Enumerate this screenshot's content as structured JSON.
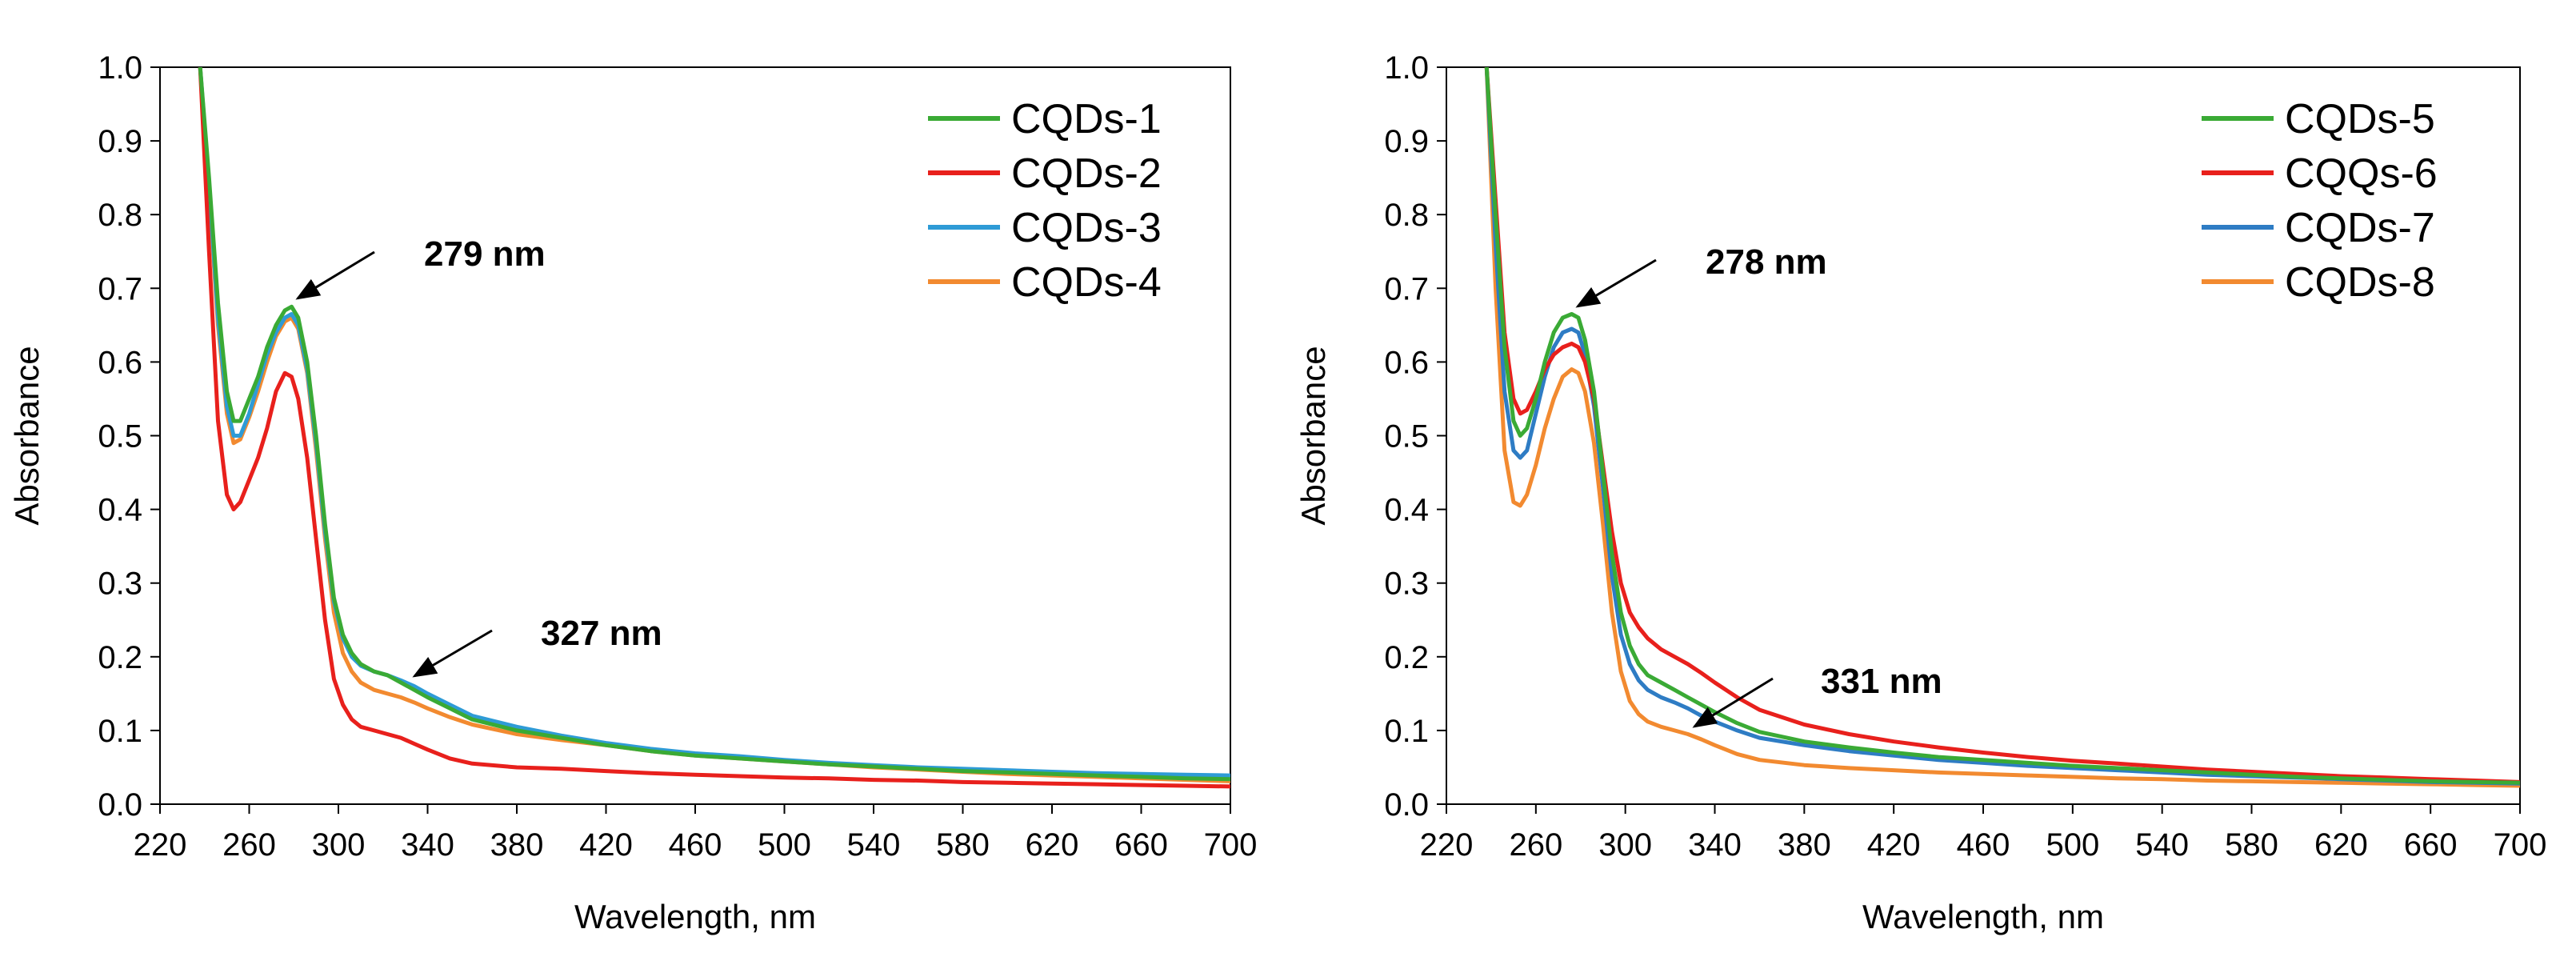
{
  "chart_data": [
    {
      "type": "line",
      "title": "",
      "xlabel": "Wavelength, nm",
      "ylabel": "Absorbance",
      "xlim": [
        220,
        700
      ],
      "ylim": [
        0,
        1.0
      ],
      "xticks": [
        220,
        260,
        300,
        340,
        380,
        420,
        460,
        500,
        540,
        580,
        620,
        660,
        700
      ],
      "yticks": [
        0.0,
        0.1,
        0.2,
        0.3,
        0.4,
        0.5,
        0.6,
        0.7,
        0.8,
        0.9,
        1.0
      ],
      "ytick_labels": [
        "0.0",
        "0.1",
        "0.2",
        "0.3",
        "0.4",
        "0.5",
        "0.6",
        "0.7",
        "0.8",
        "0.9",
        "1.0"
      ],
      "legend_position": "top-right",
      "grid": false,
      "series": [
        {
          "name": "CQDs-1",
          "color": "#3aaa35",
          "x": [
            238,
            242,
            246,
            250,
            253,
            256,
            260,
            264,
            268,
            272,
            276,
            279,
            282,
            286,
            290,
            294,
            298,
            302,
            306,
            310,
            316,
            322,
            328,
            334,
            340,
            350,
            360,
            380,
            400,
            420,
            440,
            460,
            480,
            500,
            520,
            540,
            560,
            580,
            600,
            620,
            640,
            660,
            680,
            700
          ],
          "y": [
            1.0,
            0.85,
            0.68,
            0.56,
            0.52,
            0.52,
            0.55,
            0.58,
            0.62,
            0.65,
            0.67,
            0.675,
            0.66,
            0.6,
            0.5,
            0.38,
            0.28,
            0.23,
            0.205,
            0.19,
            0.18,
            0.175,
            0.165,
            0.155,
            0.145,
            0.13,
            0.115,
            0.1,
            0.09,
            0.08,
            0.072,
            0.066,
            0.062,
            0.058,
            0.054,
            0.051,
            0.048,
            0.045,
            0.043,
            0.041,
            0.039,
            0.037,
            0.035,
            0.034
          ]
        },
        {
          "name": "CQDs-2",
          "color": "#e8201c",
          "x": [
            238,
            242,
            246,
            250,
            253,
            256,
            260,
            264,
            268,
            272,
            276,
            279,
            282,
            286,
            290,
            294,
            298,
            302,
            306,
            310,
            316,
            322,
            328,
            334,
            340,
            350,
            360,
            380,
            400,
            420,
            440,
            460,
            480,
            500,
            520,
            540,
            560,
            580,
            600,
            620,
            640,
            660,
            680,
            700
          ],
          "y": [
            1.0,
            0.75,
            0.52,
            0.42,
            0.4,
            0.41,
            0.44,
            0.47,
            0.51,
            0.56,
            0.585,
            0.58,
            0.55,
            0.47,
            0.36,
            0.25,
            0.17,
            0.135,
            0.115,
            0.105,
            0.1,
            0.095,
            0.09,
            0.082,
            0.074,
            0.062,
            0.055,
            0.05,
            0.048,
            0.045,
            0.042,
            0.04,
            0.038,
            0.036,
            0.035,
            0.033,
            0.032,
            0.03,
            0.029,
            0.028,
            0.027,
            0.026,
            0.025,
            0.024
          ]
        },
        {
          "name": "CQDs-3",
          "color": "#2e9bd6",
          "x": [
            238,
            242,
            246,
            250,
            253,
            256,
            260,
            264,
            268,
            272,
            276,
            279,
            282,
            286,
            290,
            294,
            298,
            302,
            306,
            310,
            316,
            322,
            328,
            334,
            340,
            350,
            360,
            380,
            400,
            420,
            440,
            460,
            480,
            500,
            520,
            540,
            560,
            580,
            600,
            620,
            640,
            660,
            680,
            700
          ],
          "y": [
            1.0,
            0.84,
            0.66,
            0.54,
            0.5,
            0.5,
            0.53,
            0.57,
            0.61,
            0.64,
            0.66,
            0.665,
            0.65,
            0.59,
            0.49,
            0.37,
            0.275,
            0.225,
            0.2,
            0.188,
            0.18,
            0.175,
            0.168,
            0.16,
            0.15,
            0.135,
            0.12,
            0.105,
            0.093,
            0.083,
            0.075,
            0.069,
            0.065,
            0.06,
            0.056,
            0.053,
            0.05,
            0.048,
            0.046,
            0.044,
            0.042,
            0.041,
            0.04,
            0.039
          ]
        },
        {
          "name": "CQDs-4",
          "color": "#f28a30",
          "x": [
            238,
            242,
            246,
            250,
            253,
            256,
            260,
            264,
            268,
            272,
            276,
            279,
            282,
            286,
            290,
            294,
            298,
            302,
            306,
            310,
            316,
            322,
            328,
            334,
            340,
            350,
            360,
            380,
            400,
            420,
            440,
            460,
            480,
            500,
            520,
            540,
            560,
            580,
            600,
            620,
            640,
            660,
            680,
            700
          ],
          "y": [
            1.0,
            0.83,
            0.65,
            0.53,
            0.49,
            0.495,
            0.525,
            0.56,
            0.6,
            0.635,
            0.655,
            0.66,
            0.645,
            0.585,
            0.48,
            0.36,
            0.26,
            0.205,
            0.18,
            0.165,
            0.155,
            0.15,
            0.145,
            0.138,
            0.13,
            0.118,
            0.108,
            0.095,
            0.087,
            0.08,
            0.072,
            0.066,
            0.062,
            0.058,
            0.054,
            0.05,
            0.047,
            0.044,
            0.041,
            0.039,
            0.037,
            0.035,
            0.033,
            0.031
          ]
        }
      ],
      "annotations": [
        {
          "text": "279 nm",
          "x": 279,
          "y": 0.69
        },
        {
          "text": "327 nm",
          "x": 333,
          "y": 0.175
        }
      ]
    },
    {
      "type": "line",
      "title": "",
      "xlabel": "Wavelength, nm",
      "ylabel": "Absorbance",
      "xlim": [
        220,
        700
      ],
      "ylim": [
        0,
        1.0
      ],
      "xticks": [
        220,
        260,
        300,
        340,
        380,
        420,
        460,
        500,
        540,
        580,
        620,
        660,
        700
      ],
      "yticks": [
        0.0,
        0.1,
        0.2,
        0.3,
        0.4,
        0.5,
        0.6,
        0.7,
        0.8,
        0.9,
        1.0
      ],
      "ytick_labels": [
        "0.0",
        "0.1",
        "0.2",
        "0.3",
        "0.4",
        "0.5",
        "0.6",
        "0.7",
        "0.8",
        "0.9",
        "1.0"
      ],
      "legend_position": "top-right",
      "grid": false,
      "series": [
        {
          "name": "CQDs-5",
          "color": "#3aaa35",
          "x": [
            238,
            242,
            246,
            250,
            253,
            256,
            260,
            264,
            268,
            272,
            276,
            279,
            282,
            286,
            290,
            294,
            298,
            302,
            306,
            310,
            316,
            322,
            328,
            334,
            340,
            350,
            360,
            380,
            400,
            420,
            440,
            460,
            480,
            500,
            520,
            540,
            560,
            580,
            600,
            620,
            640,
            660,
            680,
            700
          ],
          "y": [
            1.0,
            0.8,
            0.62,
            0.52,
            0.5,
            0.51,
            0.55,
            0.6,
            0.64,
            0.66,
            0.665,
            0.66,
            0.63,
            0.56,
            0.45,
            0.34,
            0.26,
            0.215,
            0.19,
            0.175,
            0.165,
            0.155,
            0.145,
            0.135,
            0.125,
            0.11,
            0.098,
            0.085,
            0.077,
            0.07,
            0.064,
            0.06,
            0.056,
            0.052,
            0.049,
            0.046,
            0.043,
            0.04,
            0.037,
            0.035,
            0.033,
            0.031,
            0.03,
            0.029
          ]
        },
        {
          "name": "CQQs-6",
          "color": "#e8201c",
          "x": [
            238,
            242,
            246,
            250,
            253,
            256,
            260,
            264,
            268,
            272,
            276,
            279,
            282,
            286,
            290,
            294,
            298,
            302,
            306,
            310,
            316,
            322,
            328,
            334,
            340,
            350,
            360,
            380,
            400,
            420,
            440,
            460,
            480,
            500,
            520,
            540,
            560,
            580,
            600,
            620,
            640,
            660,
            680,
            700
          ],
          "y": [
            1.0,
            0.82,
            0.64,
            0.55,
            0.53,
            0.535,
            0.56,
            0.59,
            0.61,
            0.62,
            0.625,
            0.62,
            0.6,
            0.55,
            0.46,
            0.37,
            0.3,
            0.26,
            0.24,
            0.225,
            0.21,
            0.2,
            0.19,
            0.178,
            0.165,
            0.145,
            0.128,
            0.108,
            0.095,
            0.085,
            0.077,
            0.07,
            0.064,
            0.059,
            0.055,
            0.051,
            0.047,
            0.044,
            0.041,
            0.038,
            0.036,
            0.034,
            0.032,
            0.03
          ]
        },
        {
          "name": "CQDs-7",
          "color": "#2e7cc4",
          "x": [
            238,
            242,
            246,
            250,
            253,
            256,
            260,
            264,
            268,
            272,
            276,
            279,
            282,
            286,
            290,
            294,
            298,
            302,
            306,
            310,
            316,
            322,
            328,
            334,
            340,
            350,
            360,
            380,
            400,
            420,
            440,
            460,
            480,
            500,
            520,
            540,
            560,
            580,
            600,
            620,
            640,
            660,
            680,
            700
          ],
          "y": [
            1.0,
            0.76,
            0.56,
            0.48,
            0.47,
            0.48,
            0.53,
            0.58,
            0.62,
            0.64,
            0.645,
            0.64,
            0.61,
            0.54,
            0.43,
            0.31,
            0.23,
            0.19,
            0.168,
            0.155,
            0.145,
            0.138,
            0.13,
            0.12,
            0.112,
            0.1,
            0.09,
            0.08,
            0.072,
            0.066,
            0.06,
            0.056,
            0.052,
            0.049,
            0.046,
            0.043,
            0.04,
            0.038,
            0.036,
            0.034,
            0.032,
            0.03,
            0.029,
            0.028
          ]
        },
        {
          "name": "CQDs-8",
          "color": "#f28a30",
          "x": [
            238,
            242,
            246,
            250,
            253,
            256,
            260,
            264,
            268,
            272,
            276,
            279,
            282,
            286,
            290,
            294,
            298,
            302,
            306,
            310,
            316,
            322,
            328,
            334,
            340,
            350,
            360,
            380,
            400,
            420,
            440,
            460,
            480,
            500,
            520,
            540,
            560,
            580,
            600,
            620,
            640,
            660,
            680,
            700
          ],
          "y": [
            1.0,
            0.7,
            0.48,
            0.41,
            0.405,
            0.42,
            0.46,
            0.51,
            0.55,
            0.58,
            0.59,
            0.585,
            0.56,
            0.49,
            0.38,
            0.26,
            0.18,
            0.14,
            0.122,
            0.112,
            0.105,
            0.1,
            0.095,
            0.088,
            0.08,
            0.068,
            0.06,
            0.053,
            0.049,
            0.046,
            0.043,
            0.041,
            0.039,
            0.037,
            0.035,
            0.034,
            0.032,
            0.031,
            0.03,
            0.029,
            0.028,
            0.027,
            0.026,
            0.025
          ]
        }
      ],
      "annotations": [
        {
          "text": "278 nm",
          "x": 278,
          "y": 0.675
        },
        {
          "text": "331 nm",
          "x": 333,
          "y": 0.105
        }
      ]
    }
  ]
}
